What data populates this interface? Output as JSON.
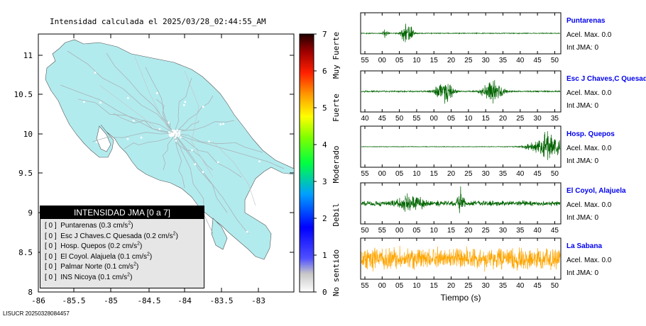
{
  "map": {
    "title": "Intensidad calculada el 2025/03/28_02:44:55_AM",
    "x_ticks": [
      "-86",
      "-85.5",
      "-85",
      "-84.5",
      "-84",
      "-83.5",
      "-83"
    ],
    "y_ticks": [
      "11",
      "10.5",
      "10",
      "9.5",
      "9",
      "8.5",
      "8"
    ],
    "land_color": "#b2ebee",
    "water_color": "#ffffff"
  },
  "legend": {
    "title": "INTENSIDAD JMA [0 a 7]",
    "rows": [
      {
        "level": "[ 0 ]",
        "name": "Puntarenas",
        "value": "(0.3 cm/s",
        "sup": "2",
        "close": ")"
      },
      {
        "level": "[ 0 ]",
        "name": "Esc J Chaves.C Quesada",
        "value": "(0.2 cm/s",
        "sup": "2",
        "close": ")"
      },
      {
        "level": "[ 0 ]",
        "name": "Hosp. Quepos",
        "value": "(0.2 cm/s",
        "sup": "2",
        "close": ")"
      },
      {
        "level": "[ 0 ]",
        "name": "El Coyol. Alajuela",
        "value": "(0.1 cm/s",
        "sup": "2",
        "close": ")"
      },
      {
        "level": "[ 0 ]",
        "name": "Palmar Norte",
        "value": "(0.1 cm/s",
        "sup": "2",
        "close": ")"
      },
      {
        "level": "[ 0 ]",
        "name": "INS Nicoya",
        "value": "(0.1 cm/s",
        "sup": "2",
        "close": ")"
      }
    ]
  },
  "colorbar": {
    "ticks": [
      "7",
      "6",
      "5",
      "4",
      "3",
      "2",
      "1",
      "0"
    ],
    "labels": [
      "Muy Fuerte",
      "Fuerte",
      "Moderado",
      "Debil",
      "No sentido"
    ]
  },
  "footer": "LISUCR 20250328084457",
  "chart_data": [
    {
      "type": "line",
      "title": "Puntarenas",
      "info": [
        "Acel. Max. 0.0",
        "Int JMA: 0"
      ],
      "color": "#006400",
      "x_ticks": [
        "55",
        "00",
        "05",
        "10",
        "15",
        "20",
        "25",
        "30",
        "35",
        "40",
        "45",
        "50"
      ],
      "bursts": [
        {
          "center": 0.23,
          "width": 0.025,
          "amp": 0.95
        },
        {
          "center": 0.12,
          "width": 0.01,
          "amp": 0.35
        }
      ],
      "noise": 0.03
    },
    {
      "type": "line",
      "title": "Esc J Chaves,C Quesad",
      "info": [
        "Acel. Max. 0.0",
        "Int JMA: 0"
      ],
      "color": "#006400",
      "x_ticks": [
        "40",
        "45",
        "50",
        "55",
        "00",
        "05",
        "10",
        "15",
        "20",
        "25",
        "30",
        "35"
      ],
      "bursts": [
        {
          "center": 0.42,
          "width": 0.04,
          "amp": 0.9
        },
        {
          "center": 0.66,
          "width": 0.045,
          "amp": 0.8
        }
      ],
      "noise": 0.05
    },
    {
      "type": "line",
      "title": "Hosp. Quepos",
      "info": [
        "Acel. Max. 0.0",
        "Int JMA: 0"
      ],
      "color": "#006400",
      "x_ticks": [
        "55",
        "00",
        "05",
        "10",
        "15",
        "20",
        "25",
        "30",
        "35",
        "40",
        "45",
        "50"
      ],
      "bursts": [
        {
          "center": 0.95,
          "width": 0.09,
          "amp": 0.95
        }
      ],
      "noise": 0.02
    },
    {
      "type": "line",
      "title": "El Coyol, Alajuela",
      "info": [
        "Acel. Max. 0.0",
        "Int JMA: 0"
      ],
      "color": "#006400",
      "x_ticks": [
        "50",
        "55",
        "00",
        "05",
        "10",
        "15",
        "20",
        "25",
        "30",
        "35",
        "40",
        "45"
      ],
      "bursts": [
        {
          "center": 0.25,
          "width": 0.07,
          "amp": 0.45
        },
        {
          "center": 0.5,
          "width": 0.015,
          "amp": 0.95
        }
      ],
      "noise": 0.18
    },
    {
      "type": "line",
      "title": "La Sabana",
      "info": [
        "Acel. Max. 0.0",
        "Int JMA: 0"
      ],
      "color": "#ffa500",
      "x_ticks": [
        "55",
        "00",
        "05",
        "10",
        "15",
        "20",
        "25",
        "30",
        "35",
        "40",
        "45",
        "50"
      ],
      "bursts": [],
      "noise": 0.75,
      "xlabel": "Tiempo (s)"
    }
  ]
}
